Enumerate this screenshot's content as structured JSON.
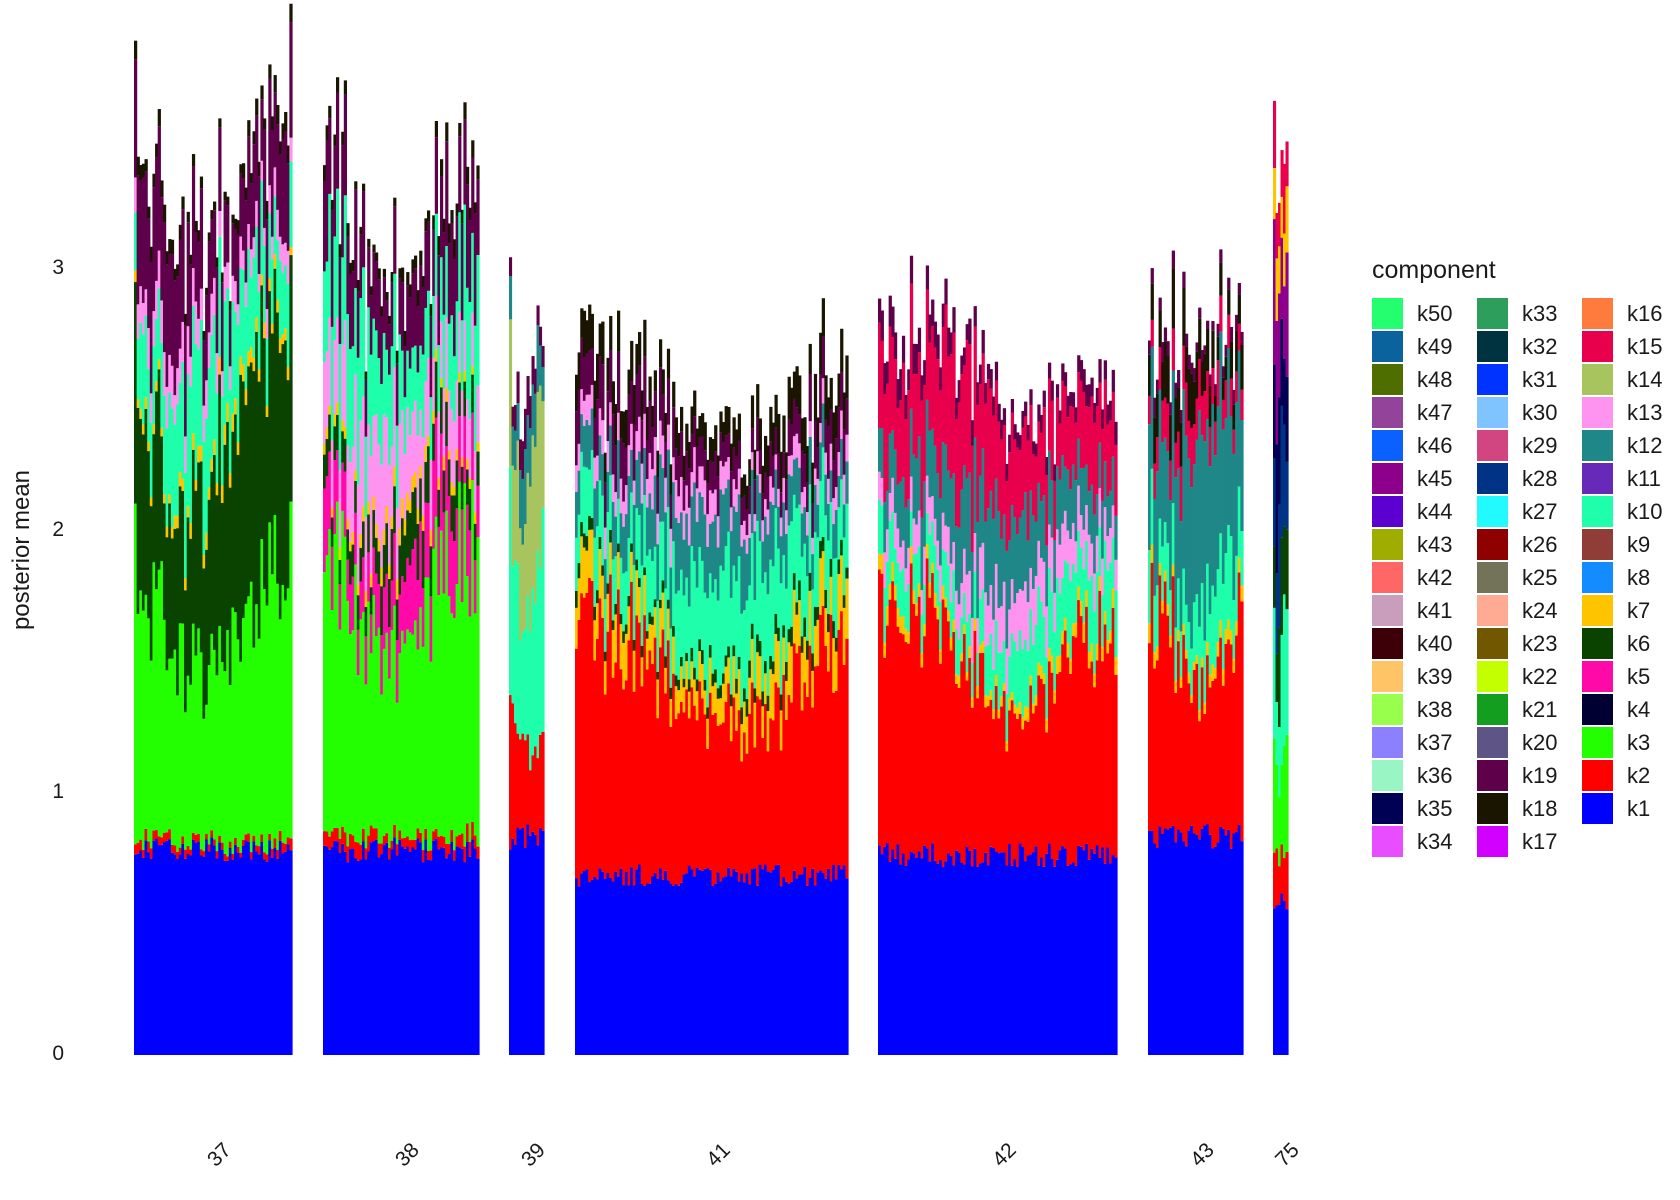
{
  "chart_data": {
    "type": "bar",
    "subtype": "stacked",
    "title": "",
    "xlabel": "",
    "ylabel": "posterior mean",
    "ylim": [
      0,
      3.8
    ],
    "y_ticks": [
      0,
      1,
      2,
      3
    ],
    "x_tick_rotation": -45,
    "grid": false,
    "legend": {
      "title": "component",
      "placement": "right",
      "columns": 3
    },
    "groups": [
      {
        "label": "37",
        "bars": 60,
        "profile": [
          {
            "component": "k1",
            "mean": 0.8
          },
          {
            "component": "k2",
            "mean": 0.03
          },
          {
            "component": "k3",
            "mean": 0.85
          },
          {
            "component": "k6",
            "mean": 0.75
          },
          {
            "component": "k7",
            "mean": 0.05
          },
          {
            "component": "k10",
            "mean": 0.35
          },
          {
            "component": "k13",
            "mean": 0.12
          },
          {
            "component": "k19",
            "mean": 0.35
          },
          {
            "component": "k18",
            "mean": 0.05
          }
        ]
      },
      {
        "label": "38",
        "bars": 60,
        "profile": [
          {
            "component": "k1",
            "mean": 0.8
          },
          {
            "component": "k2",
            "mean": 0.05
          },
          {
            "component": "k3",
            "mean": 0.9
          },
          {
            "component": "k5",
            "mean": 0.25
          },
          {
            "component": "k6",
            "mean": 0.15
          },
          {
            "component": "k7",
            "mean": 0.05
          },
          {
            "component": "k13",
            "mean": 0.3
          },
          {
            "component": "k10",
            "mean": 0.35
          },
          {
            "component": "k19",
            "mean": 0.3
          },
          {
            "component": "k18",
            "mean": 0.05
          }
        ]
      },
      {
        "label": "39",
        "bars": 14,
        "profile": [
          {
            "component": "k1",
            "mean": 0.85
          },
          {
            "component": "k2",
            "mean": 0.4
          },
          {
            "component": "k10",
            "mean": 0.6
          },
          {
            "component": "k14",
            "mean": 0.5
          },
          {
            "component": "k12",
            "mean": 0.2
          },
          {
            "component": "k19",
            "mean": 0.1
          }
        ]
      },
      {
        "label": "41",
        "bars": 104,
        "profile": [
          {
            "component": "k1",
            "mean": 0.7
          },
          {
            "component": "k2",
            "mean": 0.75
          },
          {
            "component": "k7",
            "mean": 0.15
          },
          {
            "component": "k6",
            "mean": 0.05
          },
          {
            "component": "k10",
            "mean": 0.3
          },
          {
            "component": "k12",
            "mean": 0.2
          },
          {
            "component": "k13",
            "mean": 0.1
          },
          {
            "component": "k19",
            "mean": 0.15
          },
          {
            "component": "k18",
            "mean": 0.12
          }
        ]
      },
      {
        "label": "42",
        "bars": 90,
        "profile": [
          {
            "component": "k1",
            "mean": 0.78
          },
          {
            "component": "k2",
            "mean": 0.75
          },
          {
            "component": "k7",
            "mean": 0.05
          },
          {
            "component": "k10",
            "mean": 0.2
          },
          {
            "component": "k13",
            "mean": 0.15
          },
          {
            "component": "k12",
            "mean": 0.25
          },
          {
            "component": "k15",
            "mean": 0.35
          },
          {
            "component": "k19",
            "mean": 0.08
          }
        ]
      },
      {
        "label": "43",
        "bars": 36,
        "profile": [
          {
            "component": "k1",
            "mean": 0.85
          },
          {
            "component": "k2",
            "mean": 0.7
          },
          {
            "component": "k7",
            "mean": 0.05
          },
          {
            "component": "k10",
            "mean": 0.25
          },
          {
            "component": "k12",
            "mean": 0.55
          },
          {
            "component": "k15",
            "mean": 0.15
          },
          {
            "component": "k18",
            "mean": 0.15
          },
          {
            "component": "k19",
            "mean": 0.05
          }
        ]
      },
      {
        "label": "75",
        "bars": 6,
        "profile": [
          {
            "component": "k1",
            "mean": 0.6
          },
          {
            "component": "k2",
            "mean": 0.2
          },
          {
            "component": "k3",
            "mean": 0.3
          },
          {
            "component": "k10",
            "mean": 0.4
          },
          {
            "component": "k6",
            "mean": 0.3
          },
          {
            "component": "k28",
            "mean": 0.4
          },
          {
            "component": "k35",
            "mean": 0.4
          },
          {
            "component": "k45",
            "mean": 0.4
          },
          {
            "component": "k7",
            "mean": 0.2
          },
          {
            "component": "k15",
            "mean": 0.2
          }
        ]
      }
    ],
    "components": [
      {
        "name": "k50",
        "color": "#23FF6E"
      },
      {
        "name": "k49",
        "color": "#0B639E"
      },
      {
        "name": "k48",
        "color": "#4F6E00"
      },
      {
        "name": "k47",
        "color": "#934399"
      },
      {
        "name": "k46",
        "color": "#0A61FF"
      },
      {
        "name": "k45",
        "color": "#8C008C"
      },
      {
        "name": "k44",
        "color": "#5C00D1"
      },
      {
        "name": "k43",
        "color": "#9EAD00"
      },
      {
        "name": "k42",
        "color": "#FF6666"
      },
      {
        "name": "k41",
        "color": "#C99EBD"
      },
      {
        "name": "k40",
        "color": "#3D0008"
      },
      {
        "name": "k39",
        "color": "#FFC466"
      },
      {
        "name": "k38",
        "color": "#99FF4D"
      },
      {
        "name": "k37",
        "color": "#8C80FF"
      },
      {
        "name": "k36",
        "color": "#99F5C4"
      },
      {
        "name": "k35",
        "color": "#000054"
      },
      {
        "name": "k34",
        "color": "#E84DFF"
      },
      {
        "name": "k33",
        "color": "#2E9E5C"
      },
      {
        "name": "k32",
        "color": "#003340"
      },
      {
        "name": "k31",
        "color": "#0033FF"
      },
      {
        "name": "k30",
        "color": "#80C4FF"
      },
      {
        "name": "k29",
        "color": "#D14580"
      },
      {
        "name": "k28",
        "color": "#003385"
      },
      {
        "name": "k27",
        "color": "#21FAFF"
      },
      {
        "name": "k26",
        "color": "#8F0000"
      },
      {
        "name": "k25",
        "color": "#737359"
      },
      {
        "name": "k24",
        "color": "#FFAB94"
      },
      {
        "name": "k23",
        "color": "#705700"
      },
      {
        "name": "k22",
        "color": "#C4FF00"
      },
      {
        "name": "k21",
        "color": "#149E1F"
      },
      {
        "name": "k20",
        "color": "#5E5485"
      },
      {
        "name": "k19",
        "color": "#5E004A"
      },
      {
        "name": "k18",
        "color": "#1A1500"
      },
      {
        "name": "k17",
        "color": "#D100FF"
      },
      {
        "name": "k16",
        "color": "#FF7A3D"
      },
      {
        "name": "k15",
        "color": "#E8004D"
      },
      {
        "name": "k14",
        "color": "#A8C45E"
      },
      {
        "name": "k13",
        "color": "#FF94F0"
      },
      {
        "name": "k12",
        "color": "#1F8787"
      },
      {
        "name": "k11",
        "color": "#6629B8"
      },
      {
        "name": "k10",
        "color": "#1FFFAB"
      },
      {
        "name": "k9",
        "color": "#8F3D36"
      },
      {
        "name": "k8",
        "color": "#148CFF"
      },
      {
        "name": "k7",
        "color": "#FFC400"
      },
      {
        "name": "k6",
        "color": "#0A4200"
      },
      {
        "name": "k5",
        "color": "#FF0AA8"
      },
      {
        "name": "k4",
        "color": "#000033"
      },
      {
        "name": "k3",
        "color": "#24FF00"
      },
      {
        "name": "k2",
        "color": "#FF0000"
      },
      {
        "name": "k1",
        "color": "#0000FF"
      }
    ]
  }
}
